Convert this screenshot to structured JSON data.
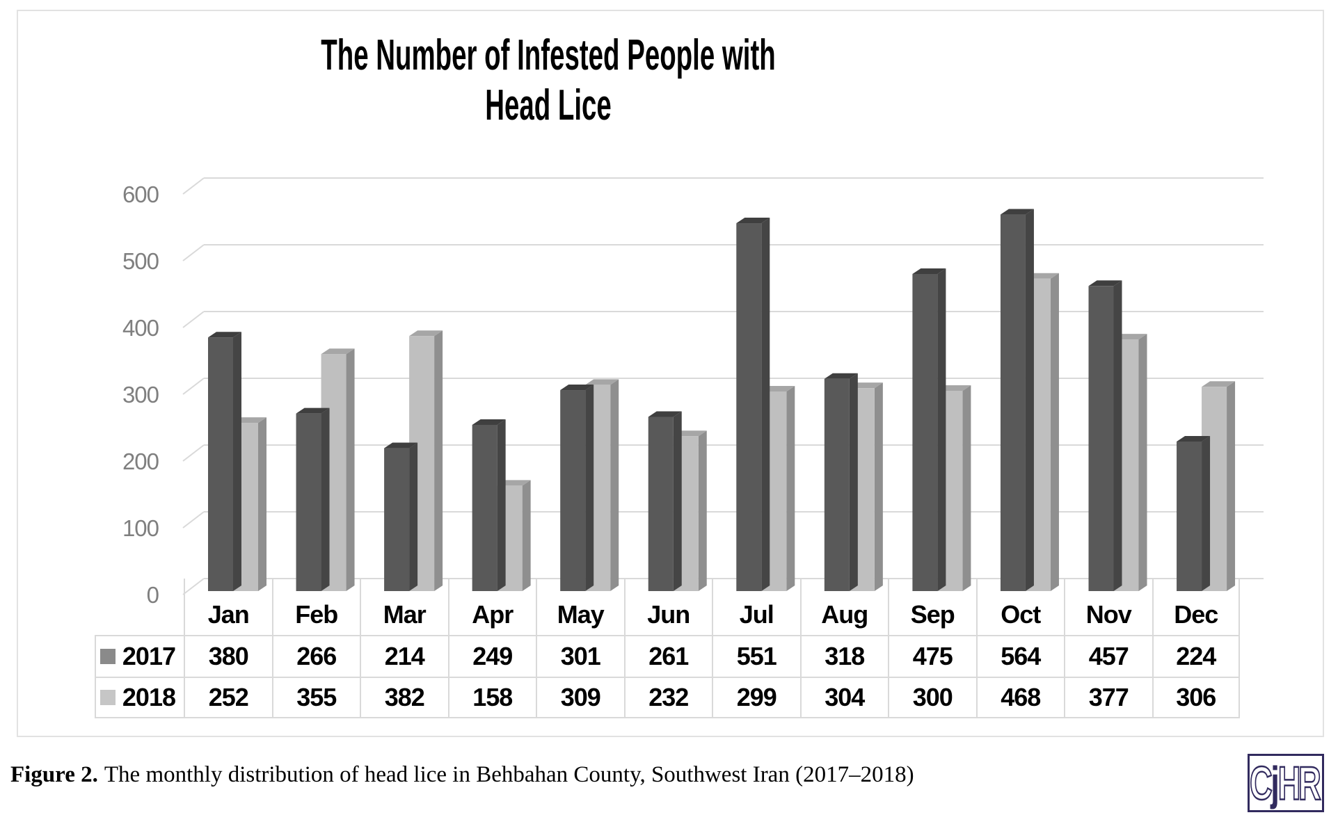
{
  "chart": {
    "title_line1": "The Number of Infested People with",
    "title_line2": "Head Lice"
  },
  "chart_data": {
    "type": "bar",
    "style": "3d-clustered-column",
    "title": "The Number of Infested People with Head Lice",
    "categories": [
      "Jan",
      "Feb",
      "Mar",
      "Apr",
      "May",
      "Jun",
      "Jul",
      "Aug",
      "Sep",
      "Oct",
      "Nov",
      "Dec"
    ],
    "series": [
      {
        "name": "2017",
        "values": [
          380,
          266,
          214,
          249,
          301,
          261,
          551,
          318,
          475,
          564,
          457,
          224
        ],
        "colors": {
          "front": "#595959",
          "top": "#3f3f3f",
          "side": "#454545",
          "legend": "#8a8a8a"
        }
      },
      {
        "name": "2018",
        "values": [
          252,
          355,
          382,
          158,
          309,
          232,
          299,
          304,
          300,
          468,
          377,
          306
        ],
        "colors": {
          "front": "#bfbfbf",
          "top": "#a6a6a6",
          "side": "#8f8f8f",
          "legend": "#c6c6c6"
        }
      }
    ],
    "xlabel": "",
    "ylabel": "",
    "ylim": [
      0,
      600
    ],
    "yticks": [
      0,
      100,
      200,
      300,
      400,
      500,
      600
    ],
    "grid": true,
    "gridline_color": "#d9d9d9",
    "axis_label_color": "#7f7f7f",
    "legend_position": "data-table-left",
    "data_table_shown": true
  },
  "caption": {
    "label": "Figure 2.",
    "text": "The monthly distribution of head lice in Behbahan County, Southwest Iran (2017–2018)"
  },
  "logo": {
    "text": "CjHR",
    "solid_letter": "j",
    "color": "#312a5e"
  }
}
